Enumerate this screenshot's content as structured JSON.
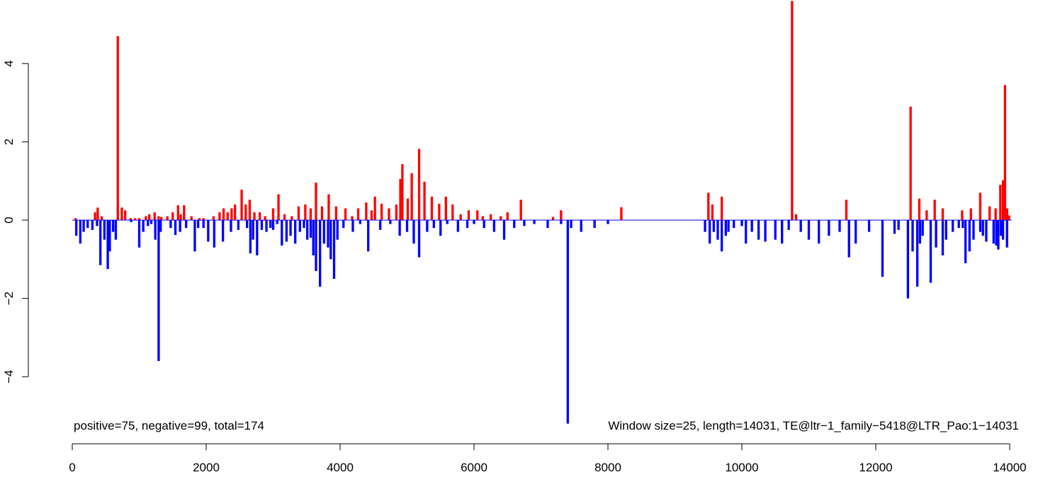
{
  "chart_data": {
    "type": "bar",
    "title": "",
    "xlabel": "",
    "ylabel": "",
    "xlim": [
      0,
      14031
    ],
    "ylim": [
      -5.2,
      5.5
    ],
    "x_ticks": [
      0,
      2000,
      4000,
      6000,
      8000,
      10000,
      12000,
      14000
    ],
    "y_ticks": [
      -4,
      -2,
      0,
      2,
      4
    ],
    "bar_width": 25,
    "colors": {
      "positive": "#ff0000",
      "negative": "#0000ff"
    },
    "annotations": {
      "left": "positive=75, negative=99, total=174",
      "right": "Window size=25, length=14031, TE@ltr−1_family−5418@LTR_Pao:1−14031"
    },
    "positive": {
      "x": [
        50,
        340,
        380,
        440,
        680,
        740,
        790,
        870,
        940,
        1000,
        1100,
        1150,
        1230,
        1290,
        1330,
        1420,
        1500,
        1580,
        1620,
        1670,
        1780,
        1900,
        1960,
        2110,
        2200,
        2260,
        2320,
        2380,
        2430,
        2530,
        2590,
        2650,
        2720,
        2800,
        2880,
        3000,
        3080,
        3170,
        3280,
        3380,
        3480,
        3560,
        3640,
        3730,
        3830,
        3940,
        4080,
        4180,
        4270,
        4390,
        4470,
        4520,
        4620,
        4730,
        4840,
        4900,
        4930,
        5010,
        5070,
        5180,
        5260,
        5370,
        5480,
        5580,
        5680,
        5800,
        5920,
        6050,
        6130,
        6250,
        6400,
        6500,
        6700,
        7180,
        7300,
        8200,
        9500,
        9560,
        9700,
        10750,
        10810,
        11560,
        12520,
        12650,
        12760,
        12880,
        13000,
        13290,
        13420,
        13560,
        13700,
        13790,
        13860,
        13900,
        13930,
        13960,
        13990
      ],
      "values": [
        0.05,
        0.2,
        0.32,
        0.1,
        4.7,
        0.32,
        0.25,
        0.05,
        0.05,
        0.05,
        0.1,
        0.15,
        0.2,
        0.1,
        0.08,
        0.1,
        0.2,
        0.38,
        0.15,
        0.38,
        0.1,
        0.05,
        0.05,
        0.1,
        0.2,
        0.3,
        0.2,
        0.3,
        0.4,
        0.78,
        0.4,
        0.52,
        0.2,
        0.2,
        0.1,
        0.3,
        0.66,
        0.15,
        0.1,
        0.35,
        0.4,
        0.3,
        0.96,
        0.35,
        0.66,
        0.35,
        0.3,
        0.1,
        0.3,
        0.45,
        0.25,
        0.6,
        0.42,
        0.3,
        0.4,
        1.05,
        1.43,
        0.55,
        1.2,
        1.82,
        0.98,
        0.6,
        0.42,
        0.6,
        0.4,
        0.15,
        0.25,
        0.25,
        0.1,
        0.15,
        0.1,
        0.2,
        0.52,
        0.08,
        0.25,
        0.33,
        0.7,
        0.4,
        0.6,
        5.6,
        0.15,
        0.52,
        2.9,
        0.55,
        0.25,
        0.52,
        0.3,
        0.25,
        0.3,
        0.7,
        0.35,
        0.3,
        0.9,
        1.02,
        3.45,
        0.3,
        0.12
      ]
    },
    "negative": {
      "x": [
        60,
        120,
        170,
        230,
        300,
        370,
        420,
        480,
        530,
        560,
        610,
        650,
        880,
        1000,
        1060,
        1130,
        1180,
        1240,
        1290,
        1320,
        1470,
        1540,
        1610,
        1700,
        1830,
        1880,
        1960,
        2030,
        2120,
        2250,
        2370,
        2480,
        2610,
        2660,
        2700,
        2760,
        2830,
        2900,
        2960,
        3000,
        3060,
        3130,
        3200,
        3260,
        3330,
        3400,
        3460,
        3510,
        3560,
        3600,
        3640,
        3700,
        3760,
        3820,
        3860,
        3910,
        3960,
        4050,
        4190,
        4300,
        4420,
        4600,
        4750,
        4890,
        5000,
        5100,
        5180,
        5300,
        5400,
        5500,
        5600,
        5760,
        5900,
        6000,
        6150,
        6300,
        6450,
        6600,
        6750,
        6900,
        7100,
        7300,
        7400,
        7450,
        7600,
        7800,
        8000,
        9450,
        9520,
        9580,
        9640,
        9700,
        9760,
        9800,
        9880,
        10000,
        10060,
        10150,
        10250,
        10350,
        10500,
        10600,
        10700,
        10880,
        11000,
        11150,
        11300,
        11460,
        11600,
        11700,
        11900,
        12100,
        12280,
        12340,
        12480,
        12550,
        12620,
        12660,
        12700,
        12820,
        12900,
        13000,
        13050,
        13150,
        13240,
        13300,
        13340,
        13400,
        13460,
        13560,
        13600,
        13650,
        13760,
        13800,
        13830,
        13870,
        13900,
        13960
      ],
      "values": [
        -0.4,
        -0.6,
        -0.3,
        -0.2,
        -0.25,
        -0.15,
        -1.15,
        -0.5,
        -1.25,
        -0.8,
        -0.3,
        -0.5,
        -0.05,
        -0.7,
        -0.3,
        -0.15,
        -0.1,
        -0.5,
        -3.6,
        -0.3,
        -0.2,
        -0.38,
        -0.3,
        -0.2,
        -0.8,
        -0.2,
        -0.2,
        -0.55,
        -0.7,
        -0.55,
        -0.3,
        -0.25,
        -0.2,
        -0.85,
        -0.5,
        -0.9,
        -0.25,
        -0.3,
        -0.2,
        -0.25,
        -0.1,
        -0.65,
        -0.55,
        -0.4,
        -0.6,
        -0.3,
        -0.2,
        -0.5,
        -0.45,
        -0.9,
        -1.3,
        -1.7,
        -0.6,
        -0.7,
        -1.0,
        -1.5,
        -0.5,
        -0.2,
        -0.3,
        -0.1,
        -0.8,
        -0.25,
        -0.1,
        -0.4,
        -0.3,
        -0.6,
        -0.95,
        -0.3,
        -0.2,
        -0.4,
        -0.1,
        -0.3,
        -0.2,
        -0.1,
        -0.2,
        -0.3,
        -0.5,
        -0.2,
        -0.15,
        -0.1,
        -0.2,
        -0.1,
        -5.2,
        -0.2,
        -0.3,
        -0.2,
        -0.1,
        -0.3,
        -0.6,
        -0.3,
        -0.5,
        -0.8,
        -0.4,
        -0.3,
        -0.2,
        -0.15,
        -0.6,
        -0.3,
        -0.5,
        -0.55,
        -0.5,
        -0.6,
        -0.25,
        -0.3,
        -0.5,
        -0.6,
        -0.4,
        -0.3,
        -0.95,
        -0.6,
        -0.3,
        -1.45,
        -0.35,
        -0.25,
        -2.0,
        -0.8,
        -1.7,
        -0.6,
        -0.4,
        -1.6,
        -0.7,
        -0.9,
        -0.5,
        -0.3,
        -0.2,
        -0.2,
        -1.1,
        -0.8,
        -0.5,
        -0.3,
        -0.4,
        -0.55,
        -0.6,
        -0.65,
        -0.75,
        -0.4,
        -0.5,
        -0.7
      ]
    }
  }
}
